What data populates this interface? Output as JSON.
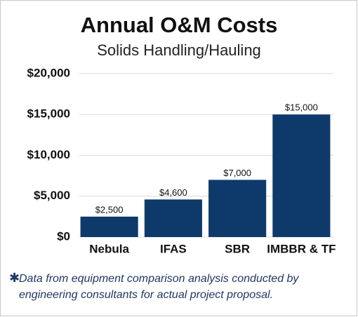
{
  "chart_data": {
    "type": "bar",
    "title": "Annual O&M Costs",
    "subtitle": "Solids Handling/Hauling",
    "categories": [
      "Nebula",
      "IFAS",
      "SBR",
      "IMBBR & TF"
    ],
    "values": [
      2500,
      4600,
      7000,
      15000
    ],
    "value_labels": [
      "$2,500",
      "$4,600",
      "$7,000",
      "$15,000"
    ],
    "color": "#0e3a6b",
    "ylim": [
      0,
      20000
    ],
    "yticks": [
      {
        "value": 0,
        "label": "$0"
      },
      {
        "value": 5000,
        "label": "$5,000"
      },
      {
        "value": 10000,
        "label": "$10,000"
      },
      {
        "value": 15000,
        "label": "$15,000"
      },
      {
        "value": 20000,
        "label": "$20,000"
      }
    ],
    "grid": true,
    "footnote_marker": "✱",
    "footnote": [
      "Data from equipment comparison analysis conducted by",
      "engineering consultants for actual project proposal."
    ]
  }
}
